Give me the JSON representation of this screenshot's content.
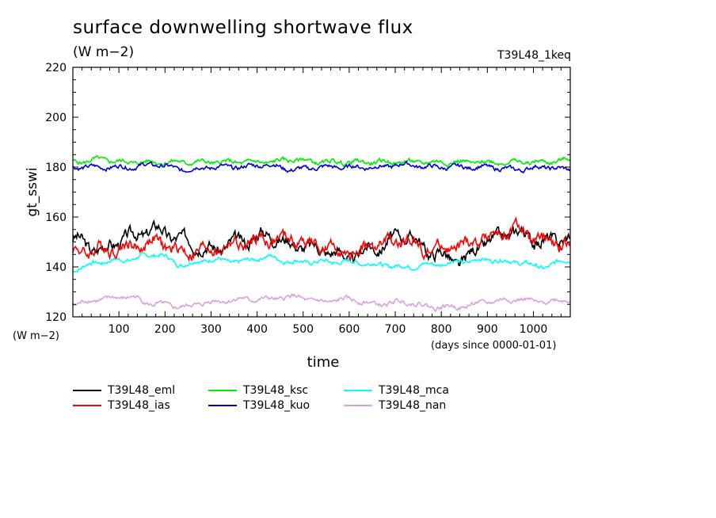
{
  "title": "surface downwelling shortwave flux",
  "units": "(W m−2)",
  "run_label": "T39L48_1keq",
  "chart_data": {
    "type": "line",
    "ylabel": "gt_sswi",
    "yunit_label": "(W m−2)",
    "xlabel": "time",
    "xunit_label": "(days since 0000-01-01)",
    "xlim": [
      0,
      1080
    ],
    "ylim": [
      120,
      220
    ],
    "x_ticks": [
      100,
      200,
      300,
      400,
      500,
      600,
      700,
      800,
      900,
      1000
    ],
    "x_tick_labels": [
      "100",
      "200",
      "300",
      "400",
      "500",
      "600",
      "700",
      "800",
      "900",
      "1000"
    ],
    "y_ticks": [
      120,
      140,
      160,
      180,
      200,
      220
    ],
    "y_tick_labels": [
      "120",
      "140",
      "160",
      "180",
      "200",
      "220"
    ],
    "grid": false,
    "legend_position": "bottom",
    "series": [
      {
        "name": "T39L48_eml",
        "color": "#000000",
        "x": [
          0,
          60,
          120,
          180,
          240,
          300,
          360,
          420,
          480,
          540,
          600,
          660,
          720,
          780,
          840,
          900,
          960,
          1020,
          1080
        ],
        "y": [
          151,
          147,
          152,
          155,
          151,
          147,
          150,
          153,
          149,
          147,
          144,
          148,
          153,
          146,
          142,
          150,
          154,
          150,
          152
        ]
      },
      {
        "name": "T39L48_ias",
        "color": "#ff0000",
        "x": [
          0,
          60,
          120,
          180,
          240,
          300,
          360,
          420,
          480,
          540,
          600,
          660,
          720,
          780,
          840,
          900,
          960,
          1020,
          1080
        ],
        "y": [
          146,
          147,
          148,
          150,
          146,
          147,
          149,
          151,
          151,
          148,
          145,
          149,
          150,
          147,
          148,
          152,
          155,
          150,
          149
        ]
      },
      {
        "name": "T39L48_ksc",
        "color": "#00ee00",
        "x": [
          0,
          60,
          120,
          180,
          240,
          300,
          360,
          420,
          480,
          540,
          600,
          660,
          720,
          780,
          840,
          900,
          960,
          1020,
          1080
        ],
        "y": [
          182,
          183,
          182,
          182,
          182,
          182,
          182,
          182,
          183,
          182,
          182,
          182,
          182,
          182,
          182,
          182,
          182,
          182,
          183
        ]
      },
      {
        "name": "T39L48_kuo",
        "color": "#0000dd",
        "x": [
          0,
          60,
          120,
          180,
          240,
          300,
          360,
          420,
          480,
          540,
          600,
          660,
          720,
          780,
          840,
          900,
          960,
          1020,
          1080
        ],
        "y": [
          180,
          180,
          180,
          181,
          179,
          180,
          180,
          181,
          179,
          180,
          180,
          180,
          181,
          180,
          180,
          180,
          179,
          180,
          179
        ]
      },
      {
        "name": "T39L48_mca",
        "color": "#00ffff",
        "x": [
          0,
          60,
          120,
          180,
          240,
          300,
          360,
          420,
          480,
          540,
          600,
          660,
          720,
          780,
          840,
          900,
          960,
          1020,
          1080
        ],
        "y": [
          139,
          142,
          143,
          145,
          141,
          143,
          142,
          144,
          142,
          142,
          142,
          141,
          140,
          141,
          142,
          143,
          142,
          140,
          143
        ]
      },
      {
        "name": "T39L48_nan",
        "color": "#dda0dd",
        "x": [
          0,
          60,
          120,
          180,
          240,
          300,
          360,
          420,
          480,
          540,
          600,
          660,
          720,
          780,
          840,
          900,
          960,
          1020,
          1080
        ],
        "y": [
          125,
          127,
          128,
          125,
          124,
          126,
          127,
          127,
          128,
          126,
          127,
          125,
          126,
          124,
          124,
          126,
          127,
          126,
          127
        ]
      }
    ]
  }
}
